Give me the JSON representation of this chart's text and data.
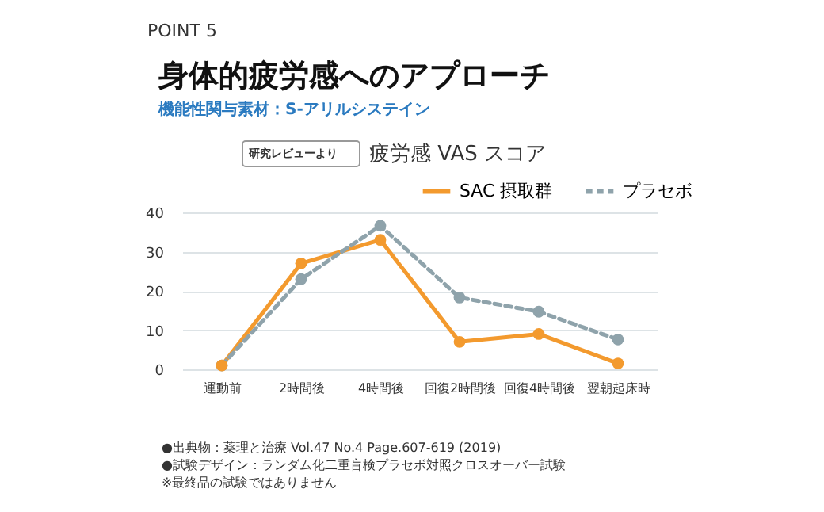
{
  "chart_data": {
    "type": "line",
    "title": "身体的疲労感へのアプローチ",
    "subtitle": "機能性関与素材：S-アリルシステイン",
    "annotations": [
      "POINT 5",
      "研究レビューより",
      "疲労感 VAS スコア",
      "●出典物：薬理と治療 Vol.47 No.4 Page.607-619 (2019)",
      "●試験デザイン：ランダム化二重盲検プラセボ対照クロスオーバー試験",
      "※最終品の試験ではありません"
    ],
    "categories": [
      "運動前",
      "2時間後",
      "4時間後",
      "回復2時間後",
      "回復4時間後",
      "翌朝起床時"
    ],
    "series": [
      {
        "name": "SAC 摂取群",
        "color": "#f39a2e",
        "line_style": "solid",
        "values": [
          1,
          27,
          33,
          7,
          9,
          1.5
        ]
      },
      {
        "name": "プラセボ",
        "color": "#8fa3ab",
        "line_style": "dashed",
        "values": [
          1,
          23,
          36.6,
          18.3,
          14.7,
          7.6
        ]
      }
    ],
    "ylim": [
      0,
      40
    ],
    "yticks": [
      0,
      10,
      20,
      30,
      40
    ],
    "grid": "y",
    "legend": "top right",
    "marker": "circle"
  }
}
